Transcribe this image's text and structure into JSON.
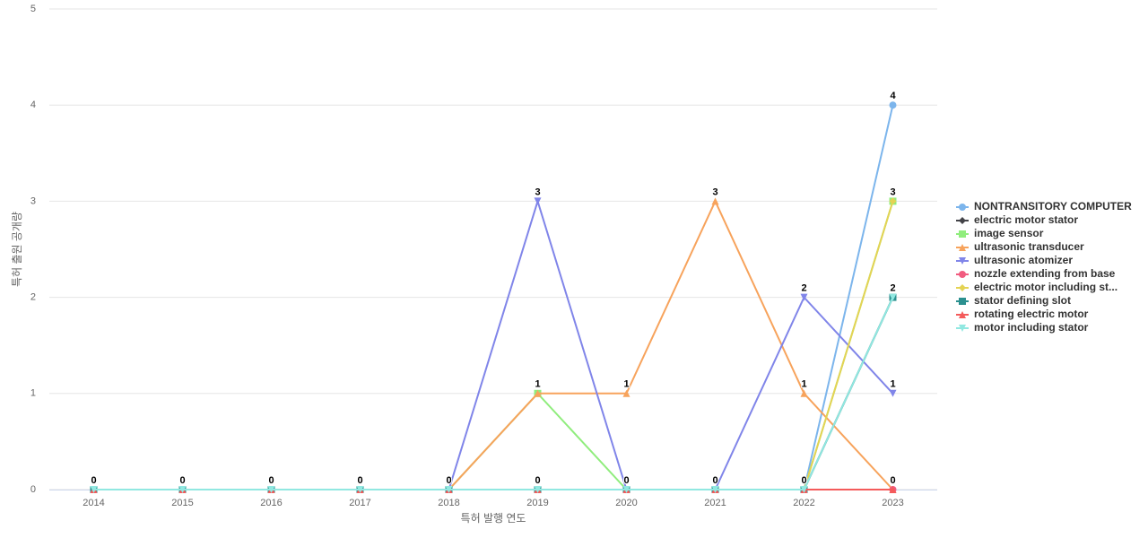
{
  "chart_data": {
    "type": "line",
    "x_label": "특허 발행 연도",
    "y_label": "특허 출원 공개량",
    "categories": [
      "2014",
      "2015",
      "2016",
      "2017",
      "2018",
      "2019",
      "2020",
      "2021",
      "2022",
      "2023"
    ],
    "ylim": [
      0,
      5
    ],
    "yticks": [
      0,
      1,
      2,
      3,
      4,
      5
    ],
    "grid": true,
    "series": [
      {
        "name": "NONTRANSITORY COMPUTER",
        "color": "#7cb5ec",
        "marker": "circle",
        "values": [
          0,
          0,
          0,
          0,
          0,
          0,
          0,
          0,
          0,
          4
        ]
      },
      {
        "name": "electric motor stator",
        "color": "#434348",
        "marker": "diamond",
        "values": [
          0,
          0,
          0,
          0,
          0,
          0,
          0,
          0,
          0,
          2
        ]
      },
      {
        "name": "image sensor",
        "color": "#90ed7d",
        "marker": "square",
        "values": [
          0,
          0,
          0,
          0,
          0,
          1,
          0,
          0,
          0,
          3
        ]
      },
      {
        "name": "ultrasonic transducer",
        "color": "#f7a35c",
        "marker": "triangle",
        "values": [
          0,
          0,
          0,
          0,
          0,
          1,
          1,
          3,
          1,
          0
        ]
      },
      {
        "name": "ultrasonic atomizer",
        "color": "#8085e9",
        "marker": "triangle-down",
        "values": [
          0,
          0,
          0,
          0,
          0,
          3,
          0,
          0,
          2,
          1
        ]
      },
      {
        "name": "nozzle extending from base",
        "color": "#f15c80",
        "marker": "circle",
        "values": [
          0,
          0,
          0,
          0,
          0,
          0,
          0,
          0,
          0,
          0
        ]
      },
      {
        "name": "electric motor including st...",
        "color": "#e4d354",
        "marker": "diamond",
        "values": [
          0,
          0,
          0,
          0,
          0,
          0,
          0,
          0,
          0,
          3
        ]
      },
      {
        "name": "stator defining slot",
        "color": "#2b908f",
        "marker": "square",
        "values": [
          0,
          0,
          0,
          0,
          0,
          0,
          0,
          0,
          0,
          2
        ]
      },
      {
        "name": "rotating electric motor",
        "color": "#f45b5b",
        "marker": "triangle",
        "values": [
          0,
          0,
          0,
          0,
          0,
          0,
          0,
          0,
          0,
          0
        ]
      },
      {
        "name": "motor including stator",
        "color": "#91e8e1",
        "marker": "triangle-down",
        "values": [
          0,
          0,
          0,
          0,
          0,
          0,
          0,
          0,
          0,
          2
        ]
      }
    ]
  }
}
